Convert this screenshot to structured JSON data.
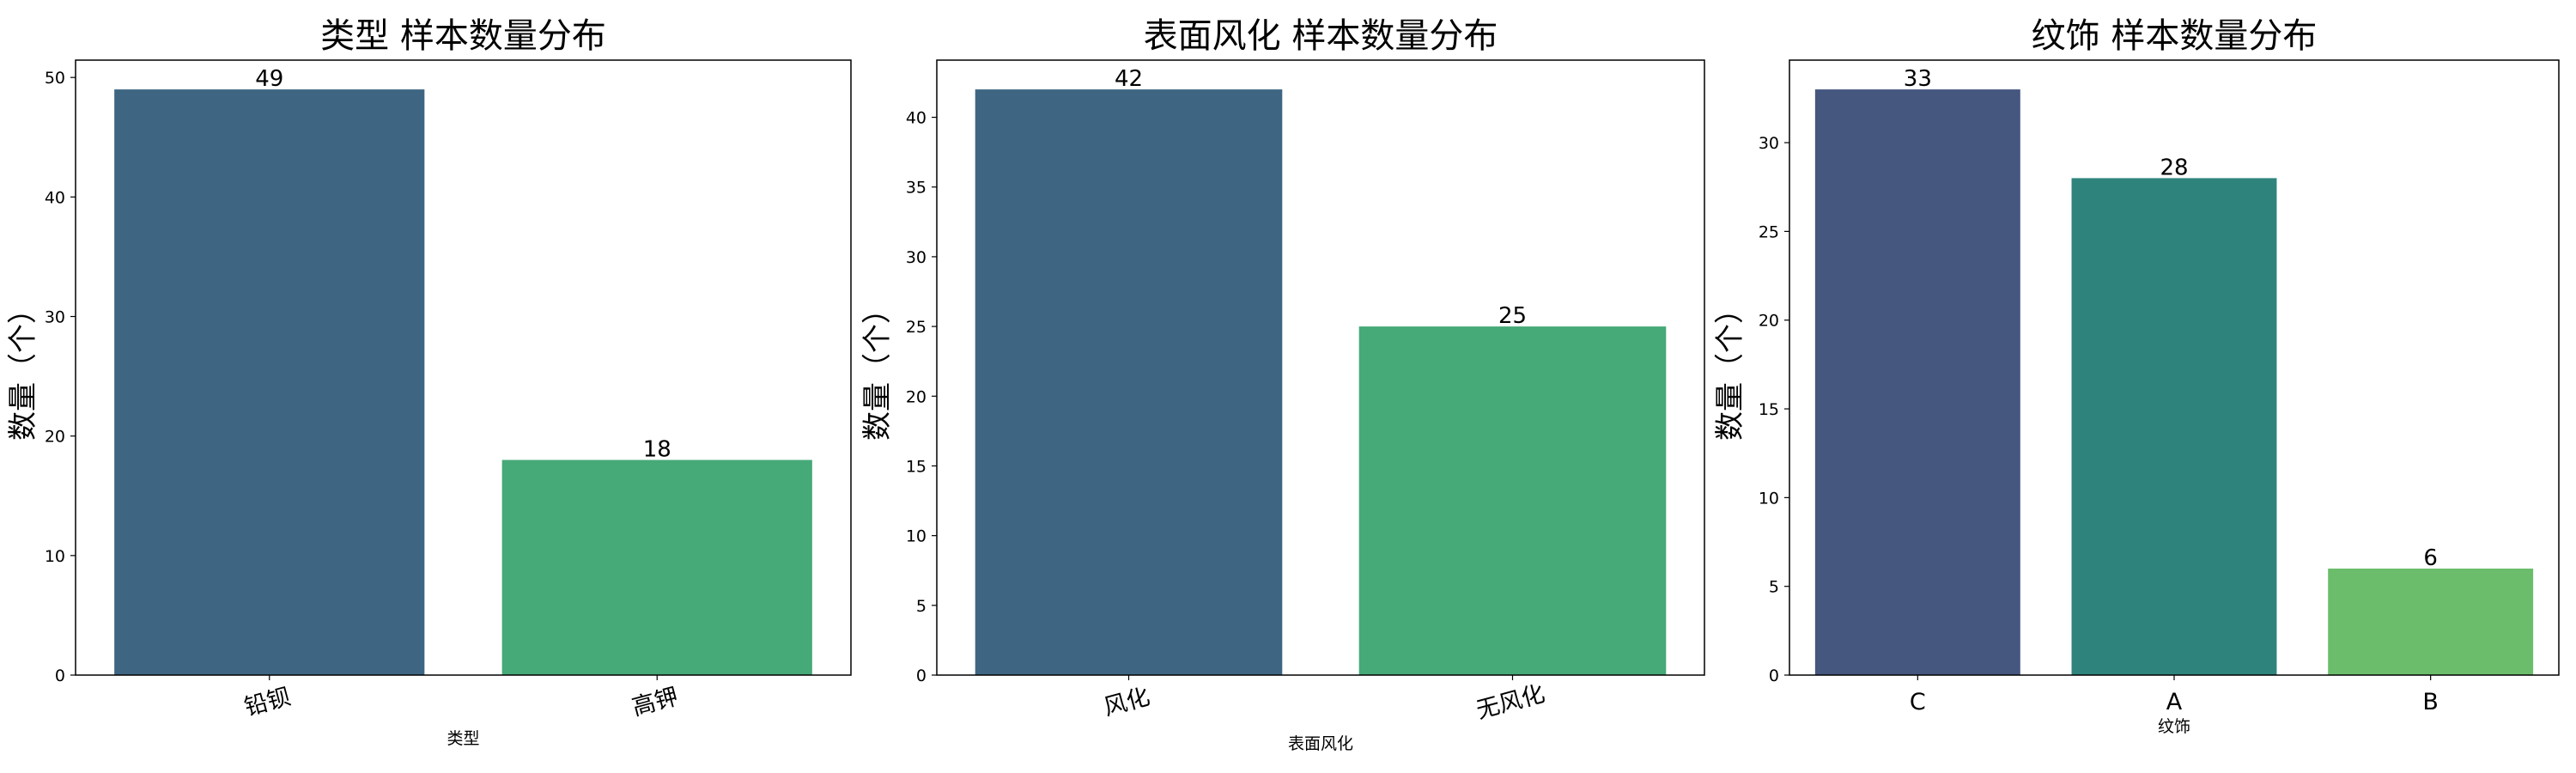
{
  "chart_data": [
    {
      "type": "bar",
      "title": "类型 样本数量分布",
      "xlabel": "类型",
      "ylabel": "数量（个）",
      "categories": [
        "铅钡",
        "高钾"
      ],
      "values": [
        49,
        18
      ],
      "colors": [
        "#3e6683",
        "#46a978"
      ],
      "ylim": [
        0,
        51.45
      ],
      "yticks": [
        0,
        10,
        20,
        30,
        40,
        50
      ],
      "rotate_xticks": true,
      "grid": false
    },
    {
      "type": "bar",
      "title": "表面风化 样本数量分布",
      "xlabel": "表面风化",
      "ylabel": "数量（个）",
      "categories": [
        "风化",
        "无风化"
      ],
      "values": [
        42,
        25
      ],
      "colors": [
        "#3e6683",
        "#46a978"
      ],
      "ylim": [
        0,
        44.1
      ],
      "yticks": [
        0,
        5,
        10,
        15,
        20,
        25,
        30,
        35,
        40
      ],
      "rotate_xticks": true,
      "grid": false
    },
    {
      "type": "bar",
      "title": "纹饰 样本数量分布",
      "xlabel": "纹饰",
      "ylabel": "数量（个）",
      "categories": [
        "C",
        "A",
        "B"
      ],
      "values": [
        33,
        28,
        6
      ],
      "colors": [
        "#45577f",
        "#2e847d",
        "#6bbd6b"
      ],
      "ylim": [
        0,
        34.65
      ],
      "yticks": [
        0,
        5,
        10,
        15,
        20,
        25,
        30
      ],
      "rotate_xticks": false,
      "grid": false
    }
  ]
}
